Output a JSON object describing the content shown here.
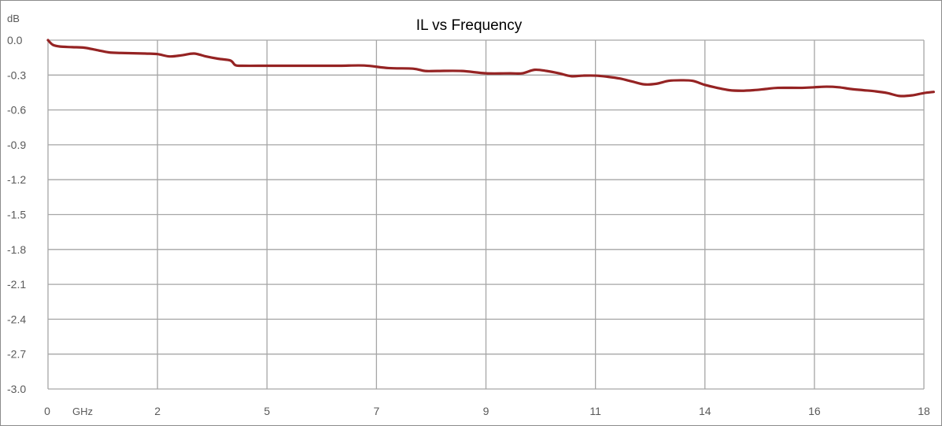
{
  "chart_data": {
    "type": "line",
    "title": "IL vs Frequency",
    "ylabel": "dB",
    "xunit": "GHz",
    "ylim": [
      -3.0,
      0.0
    ],
    "xlim": [
      0,
      18
    ],
    "y_ticks": [
      "0.0",
      "-0.3",
      "-0.6",
      "-0.9",
      "-1.2",
      "-1.5",
      "-1.8",
      "-2.1",
      "-2.4",
      "-2.7",
      "-3.0"
    ],
    "x_tick_labels": [
      "0",
      "2",
      "5",
      "7",
      "9",
      "11",
      "14",
      "16",
      "18"
    ],
    "grid": true,
    "legend": "none",
    "line_color": "#952323",
    "grid_color": "#a6a6a6",
    "series": [
      {
        "points": [
          [
            0.0,
            0.0
          ],
          [
            0.1,
            -0.04
          ],
          [
            0.25,
            -0.055
          ],
          [
            0.5,
            -0.06
          ],
          [
            0.75,
            -0.065
          ],
          [
            1.0,
            -0.085
          ],
          [
            1.25,
            -0.105
          ],
          [
            1.5,
            -0.11
          ],
          [
            2.0,
            -0.115
          ],
          [
            2.25,
            -0.12
          ],
          [
            2.5,
            -0.14
          ],
          [
            2.75,
            -0.13
          ],
          [
            3.0,
            -0.115
          ],
          [
            3.25,
            -0.14
          ],
          [
            3.5,
            -0.16
          ],
          [
            3.75,
            -0.175
          ],
          [
            3.85,
            -0.215
          ],
          [
            4.0,
            -0.22
          ],
          [
            4.5,
            -0.22
          ],
          [
            5.0,
            -0.22
          ],
          [
            5.5,
            -0.22
          ],
          [
            6.0,
            -0.22
          ],
          [
            6.5,
            -0.218
          ],
          [
            7.0,
            -0.24
          ],
          [
            7.5,
            -0.245
          ],
          [
            7.75,
            -0.265
          ],
          [
            8.0,
            -0.265
          ],
          [
            8.5,
            -0.265
          ],
          [
            9.0,
            -0.285
          ],
          [
            9.5,
            -0.285
          ],
          [
            9.75,
            -0.285
          ],
          [
            10.0,
            -0.255
          ],
          [
            10.25,
            -0.265
          ],
          [
            10.5,
            -0.285
          ],
          [
            10.75,
            -0.31
          ],
          [
            11.0,
            -0.305
          ],
          [
            11.25,
            -0.305
          ],
          [
            11.5,
            -0.315
          ],
          [
            11.75,
            -0.33
          ],
          [
            12.0,
            -0.355
          ],
          [
            12.25,
            -0.38
          ],
          [
            12.5,
            -0.375
          ],
          [
            12.75,
            -0.35
          ],
          [
            13.0,
            -0.345
          ],
          [
            13.25,
            -0.35
          ],
          [
            13.5,
            -0.385
          ],
          [
            13.75,
            -0.41
          ],
          [
            14.0,
            -0.43
          ],
          [
            14.25,
            -0.435
          ],
          [
            14.5,
            -0.43
          ],
          [
            14.75,
            -0.42
          ],
          [
            15.0,
            -0.41
          ],
          [
            15.5,
            -0.41
          ],
          [
            15.75,
            -0.405
          ],
          [
            16.0,
            -0.4
          ],
          [
            16.25,
            -0.405
          ],
          [
            16.5,
            -0.42
          ],
          [
            16.75,
            -0.43
          ],
          [
            17.0,
            -0.44
          ],
          [
            17.25,
            -0.455
          ],
          [
            17.5,
            -0.48
          ],
          [
            17.75,
            -0.475
          ],
          [
            18.0,
            -0.455
          ],
          [
            18.2,
            -0.445
          ]
        ]
      }
    ]
  }
}
